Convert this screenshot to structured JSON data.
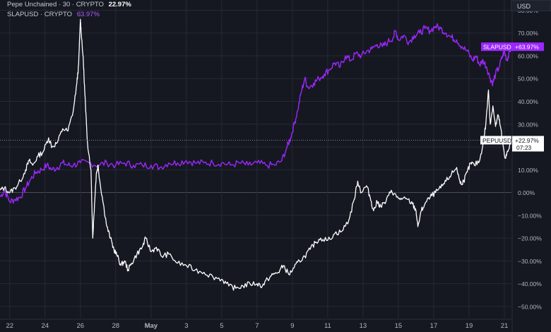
{
  "legend": {
    "series1_name": "Pepe Unchained · 30 · CRYPTO",
    "series1_pct": "22.97%",
    "series2_name": "SLAPUSD · CRYPTO",
    "series2_pct": "63.97%"
  },
  "currency_button": "USD",
  "colors": {
    "background": "#151821",
    "pepe_line": "#ffffff",
    "slap_line": "#9c27ff",
    "grid": "#262a35",
    "axis_text": "#b2b5be"
  },
  "chart_data": {
    "type": "line",
    "ylim": [
      -55,
      82
    ],
    "y_ticks": [
      80,
      70,
      60,
      50,
      40,
      30,
      20,
      10,
      0,
      -10,
      -20,
      -30,
      -40,
      -50
    ],
    "y_tick_labels": [
      "80.00%",
      "70.00%",
      "60.00%",
      "50.00%",
      "40.00%",
      "30.00%",
      "20.00%",
      "10.00%",
      "0.00%",
      "−10.00%",
      "−20.00%",
      "−30.00%",
      "−40.00%",
      "−50.00%"
    ],
    "x_tick_labels": [
      "22",
      "24",
      "26",
      "28",
      "May",
      "3",
      "5",
      "7",
      "9",
      "11",
      "13",
      "15",
      "17",
      "19",
      "21"
    ],
    "x_ticks_day": [
      0,
      2,
      4,
      6,
      8,
      10,
      12,
      14,
      16,
      18,
      20,
      22,
      24,
      26,
      28
    ],
    "x_range_day": [
      -0.55,
      28.4
    ],
    "series": [
      {
        "name": "PEPUUSD",
        "label": "PEPUUSD",
        "last_value_label": "+22.97%",
        "countdown": "07:23",
        "last_value": 22.97,
        "points": [
          [
            -0.55,
            1
          ],
          [
            -0.3,
            2
          ],
          [
            0,
            0
          ],
          [
            0.3,
            2
          ],
          [
            0.6,
            5
          ],
          [
            0.9,
            10
          ],
          [
            1.1,
            14
          ],
          [
            1.3,
            12
          ],
          [
            1.6,
            16
          ],
          [
            1.9,
            18
          ],
          [
            2.2,
            24
          ],
          [
            2.4,
            20
          ],
          [
            2.7,
            22
          ],
          [
            3.0,
            28
          ],
          [
            3.3,
            27
          ],
          [
            3.6,
            36
          ],
          [
            3.8,
            48
          ],
          [
            3.9,
            56
          ],
          [
            4.0,
            76
          ],
          [
            4.05,
            70
          ],
          [
            4.15,
            60
          ],
          [
            4.2,
            52
          ],
          [
            4.3,
            36
          ],
          [
            4.4,
            22
          ],
          [
            4.6,
            10
          ],
          [
            4.7,
            -20
          ],
          [
            4.8,
            -5
          ],
          [
            4.9,
            8
          ],
          [
            5.0,
            12
          ],
          [
            5.1,
            5
          ],
          [
            5.3,
            -5
          ],
          [
            5.5,
            -15
          ],
          [
            5.7,
            -20
          ],
          [
            5.9,
            -25
          ],
          [
            6.1,
            -28
          ],
          [
            6.3,
            -32
          ],
          [
            6.5,
            -30
          ],
          [
            6.7,
            -34
          ],
          [
            6.9,
            -31
          ],
          [
            7.2,
            -27
          ],
          [
            7.5,
            -24
          ],
          [
            7.7,
            -20
          ],
          [
            8.0,
            -26
          ],
          [
            8.3,
            -24
          ],
          [
            8.6,
            -28
          ],
          [
            9.0,
            -27
          ],
          [
            9.5,
            -31
          ],
          [
            10.0,
            -32
          ],
          [
            10.5,
            -34
          ],
          [
            11.0,
            -35
          ],
          [
            11.5,
            -37
          ],
          [
            12.0,
            -38
          ],
          [
            12.4,
            -41
          ],
          [
            12.8,
            -42
          ],
          [
            13.2,
            -41
          ],
          [
            13.6,
            -40
          ],
          [
            14.0,
            -40
          ],
          [
            14.3,
            -41
          ],
          [
            14.6,
            -38
          ],
          [
            14.9,
            -36
          ],
          [
            15.2,
            -35
          ],
          [
            15.5,
            -32
          ],
          [
            15.8,
            -36
          ],
          [
            16.1,
            -33
          ],
          [
            16.4,
            -30
          ],
          [
            16.7,
            -28
          ],
          [
            17.0,
            -25
          ],
          [
            17.3,
            -22
          ],
          [
            17.6,
            -20
          ],
          [
            18.0,
            -21
          ],
          [
            18.4,
            -18
          ],
          [
            18.8,
            -17
          ],
          [
            19.2,
            -12
          ],
          [
            19.5,
            -3
          ],
          [
            19.7,
            5
          ],
          [
            19.9,
            0
          ],
          [
            20.2,
            3
          ],
          [
            20.4,
            -2
          ],
          [
            20.6,
            -8
          ],
          [
            20.8,
            -4
          ],
          [
            21.0,
            -6
          ],
          [
            21.3,
            -4
          ],
          [
            21.6,
            1
          ],
          [
            21.9,
            -2
          ],
          [
            22.2,
            -3
          ],
          [
            22.5,
            -3
          ],
          [
            22.8,
            -5
          ],
          [
            23.0,
            -8
          ],
          [
            23.1,
            -15
          ],
          [
            23.3,
            -8
          ],
          [
            23.5,
            -5
          ],
          [
            23.8,
            -2
          ],
          [
            24.1,
            0
          ],
          [
            24.4,
            2
          ],
          [
            24.7,
            5
          ],
          [
            25.0,
            8
          ],
          [
            25.3,
            11
          ],
          [
            25.5,
            4
          ],
          [
            25.7,
            5
          ],
          [
            25.9,
            9
          ],
          [
            26.1,
            13
          ],
          [
            26.3,
            12
          ],
          [
            26.6,
            14
          ],
          [
            26.8,
            22
          ],
          [
            26.95,
            30
          ],
          [
            27.1,
            45
          ],
          [
            27.2,
            30
          ],
          [
            27.35,
            38
          ],
          [
            27.5,
            29
          ],
          [
            27.65,
            34
          ],
          [
            27.8,
            28
          ],
          [
            27.9,
            22
          ],
          [
            28.05,
            15
          ],
          [
            28.2,
            18
          ],
          [
            28.4,
            23
          ]
        ]
      },
      {
        "name": "SLAPUSD",
        "label": "SLAPUSD",
        "last_value_label": "+63.97%",
        "last_value": 63.97,
        "points": [
          [
            -0.55,
            -2
          ],
          [
            -0.3,
            1
          ],
          [
            0,
            -4
          ],
          [
            0.3,
            -3
          ],
          [
            0.6,
            -2
          ],
          [
            0.9,
            2
          ],
          [
            1.2,
            6
          ],
          [
            1.5,
            9
          ],
          [
            1.8,
            10
          ],
          [
            2.1,
            12
          ],
          [
            2.4,
            10
          ],
          [
            2.7,
            11
          ],
          [
            3.0,
            13
          ],
          [
            3.3,
            12
          ],
          [
            3.6,
            12
          ],
          [
            4.0,
            13
          ],
          [
            4.5,
            13
          ],
          [
            5.0,
            12
          ],
          [
            5.5,
            13
          ],
          [
            6.0,
            12
          ],
          [
            6.5,
            13
          ],
          [
            7.0,
            12
          ],
          [
            7.5,
            12
          ],
          [
            8.0,
            12
          ],
          [
            8.5,
            11
          ],
          [
            9.0,
            13
          ],
          [
            9.5,
            13
          ],
          [
            10.0,
            14
          ],
          [
            10.5,
            13
          ],
          [
            11.0,
            13
          ],
          [
            11.5,
            13
          ],
          [
            12.0,
            13
          ],
          [
            12.5,
            12
          ],
          [
            13.0,
            13
          ],
          [
            13.5,
            12
          ],
          [
            14.0,
            13
          ],
          [
            14.5,
            12
          ],
          [
            15.0,
            12
          ],
          [
            15.4,
            14
          ],
          [
            15.7,
            20
          ],
          [
            15.9,
            24
          ],
          [
            16.1,
            30
          ],
          [
            16.3,
            36
          ],
          [
            16.5,
            44
          ],
          [
            16.7,
            50
          ],
          [
            16.9,
            46
          ],
          [
            17.2,
            48
          ],
          [
            17.5,
            50
          ],
          [
            17.8,
            52
          ],
          [
            18.1,
            54
          ],
          [
            18.4,
            57
          ],
          [
            18.7,
            55
          ],
          [
            19.0,
            60
          ],
          [
            19.3,
            58
          ],
          [
            19.6,
            61
          ],
          [
            19.9,
            60
          ],
          [
            20.2,
            62
          ],
          [
            20.5,
            63
          ],
          [
            20.8,
            65
          ],
          [
            21.1,
            64
          ],
          [
            21.4,
            66
          ],
          [
            21.7,
            68
          ],
          [
            21.85,
            71
          ],
          [
            22.0,
            67
          ],
          [
            22.3,
            69
          ],
          [
            22.6,
            66
          ],
          [
            22.9,
            69
          ],
          [
            23.2,
            70
          ],
          [
            23.5,
            72
          ],
          [
            23.8,
            71
          ],
          [
            24.1,
            73
          ],
          [
            24.4,
            72
          ],
          [
            24.7,
            70
          ],
          [
            25.0,
            68
          ],
          [
            25.3,
            67
          ],
          [
            25.6,
            64
          ],
          [
            25.9,
            62
          ],
          [
            26.2,
            58
          ],
          [
            26.4,
            60
          ],
          [
            26.6,
            56
          ],
          [
            26.8,
            58
          ],
          [
            27.0,
            55
          ],
          [
            27.2,
            50
          ],
          [
            27.35,
            48
          ],
          [
            27.5,
            52
          ],
          [
            27.7,
            55
          ],
          [
            27.9,
            60
          ],
          [
            28.0,
            62
          ],
          [
            28.15,
            58
          ],
          [
            28.25,
            61
          ],
          [
            28.4,
            64
          ]
        ]
      }
    ]
  }
}
